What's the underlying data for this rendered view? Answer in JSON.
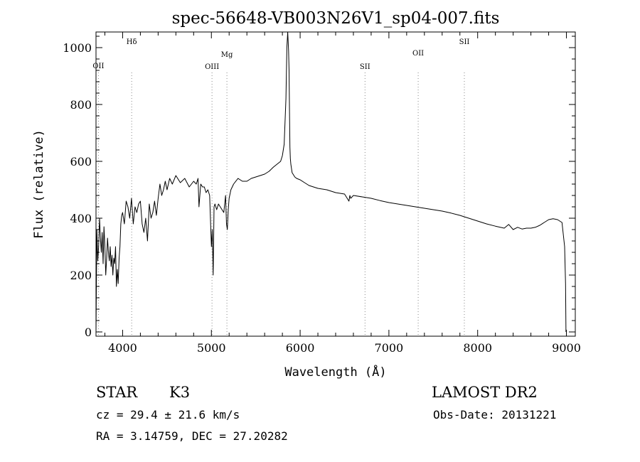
{
  "chart_data": {
    "type": "line",
    "title": "spec-56648-VB003N26V1_sp04-007.fits",
    "xlabel": "Wavelength (Å)",
    "ylabel": "Flux (relative)",
    "xlim": [
      3700,
      9100
    ],
    "ylim": [
      -15,
      1055
    ],
    "xticks": [
      4000,
      5000,
      6000,
      7000,
      8000,
      9000
    ],
    "xtick_labels": [
      "4000",
      "5000",
      "6000",
      "7000",
      "8000",
      "9000"
    ],
    "yticks": [
      0,
      200,
      400,
      600,
      800,
      1000
    ],
    "ytick_labels": [
      "0",
      "200",
      "400",
      "600",
      "800",
      "1000"
    ],
    "grid": false,
    "line_color": "#000000",
    "marker_color": "#888888",
    "spectrum": {
      "x": [
        3700,
        3710,
        3720,
        3730,
        3740,
        3750,
        3760,
        3770,
        3780,
        3790,
        3800,
        3810,
        3820,
        3830,
        3840,
        3850,
        3860,
        3870,
        3880,
        3890,
        3900,
        3910,
        3920,
        3930,
        3940,
        3950,
        3960,
        3970,
        3980,
        3990,
        4000,
        4020,
        4040,
        4060,
        4080,
        4100,
        4120,
        4140,
        4160,
        4180,
        4200,
        4220,
        4240,
        4260,
        4280,
        4300,
        4320,
        4340,
        4360,
        4380,
        4400,
        4420,
        4440,
        4460,
        4480,
        4500,
        4530,
        4560,
        4600,
        4650,
        4700,
        4750,
        4800,
        4830,
        4850,
        4860,
        4880,
        4900,
        4920,
        4940,
        4960,
        4980,
        5000,
        5010,
        5020,
        5030,
        5040,
        5060,
        5080,
        5100,
        5140,
        5160,
        5170,
        5180,
        5190,
        5200,
        5220,
        5250,
        5300,
        5350,
        5400,
        5450,
        5500,
        5550,
        5600,
        5650,
        5700,
        5740,
        5780,
        5800,
        5820,
        5840,
        5850,
        5860,
        5870,
        5875,
        5880,
        5885,
        5890,
        5895,
        5900,
        5905,
        5910,
        5920,
        5940,
        5960,
        6000,
        6050,
        6100,
        6150,
        6200,
        6300,
        6400,
        6500,
        6550,
        6560,
        6570,
        6600,
        6700,
        6800,
        6900,
        7000,
        7100,
        7200,
        7300,
        7400,
        7500,
        7600,
        7700,
        7800,
        7900,
        8000,
        8100,
        8200,
        8300,
        8350,
        8400,
        8450,
        8500,
        8550,
        8600,
        8650,
        8700,
        8750,
        8800,
        8850,
        8900,
        8950,
        8980,
        8990,
        8995
      ],
      "y": [
        0,
        360,
        250,
        300,
        400,
        330,
        280,
        350,
        240,
        370,
        300,
        200,
        260,
        330,
        280,
        250,
        300,
        230,
        270,
        200,
        260,
        240,
        300,
        160,
        220,
        170,
        260,
        300,
        380,
        410,
        420,
        380,
        460,
        440,
        400,
        470,
        380,
        440,
        420,
        450,
        460,
        380,
        350,
        400,
        320,
        450,
        400,
        420,
        460,
        410,
        470,
        520,
        480,
        500,
        530,
        500,
        540,
        520,
        550,
        525,
        540,
        510,
        530,
        520,
        540,
        440,
        520,
        510,
        510,
        490,
        500,
        480,
        300,
        360,
        200,
        440,
        450,
        430,
        450,
        440,
        420,
        480,
        380,
        360,
        430,
        470,
        500,
        520,
        540,
        530,
        530,
        540,
        545,
        550,
        555,
        565,
        580,
        590,
        600,
        620,
        660,
        820,
        1000,
        1055,
        990,
        920,
        780,
        650,
        610,
        590,
        580,
        570,
        560,
        555,
        545,
        540,
        535,
        525,
        515,
        510,
        505,
        500,
        490,
        485,
        460,
        480,
        470,
        480,
        475,
        470,
        462,
        455,
        450,
        445,
        440,
        435,
        430,
        425,
        418,
        410,
        400,
        390,
        380,
        372,
        365,
        378,
        360,
        368,
        362,
        365,
        365,
        368,
        375,
        385,
        395,
        398,
        395,
        385,
        300,
        170,
        0
      ]
    },
    "lines": [
      {
        "label": "OII",
        "x": 3727
      },
      {
        "label": "Hδ",
        "x": 4102
      },
      {
        "label": "OIII",
        "x": 5007
      },
      {
        "label": "Mg",
        "x": 5175
      },
      {
        "label": "SII",
        "x": 6731
      },
      {
        "label": "OII",
        "x": 7330
      },
      {
        "label": "SII",
        "x": 7850
      }
    ]
  },
  "info": {
    "object_class": "STAR",
    "subclass": "K3",
    "survey": "LAMOST DR2",
    "cz": "cz = 29.4 ± 21.6 km/s",
    "obs_date": "Obs-Date: 20131221",
    "coords": "RA =   3.14759, DEC =  27.20282"
  }
}
